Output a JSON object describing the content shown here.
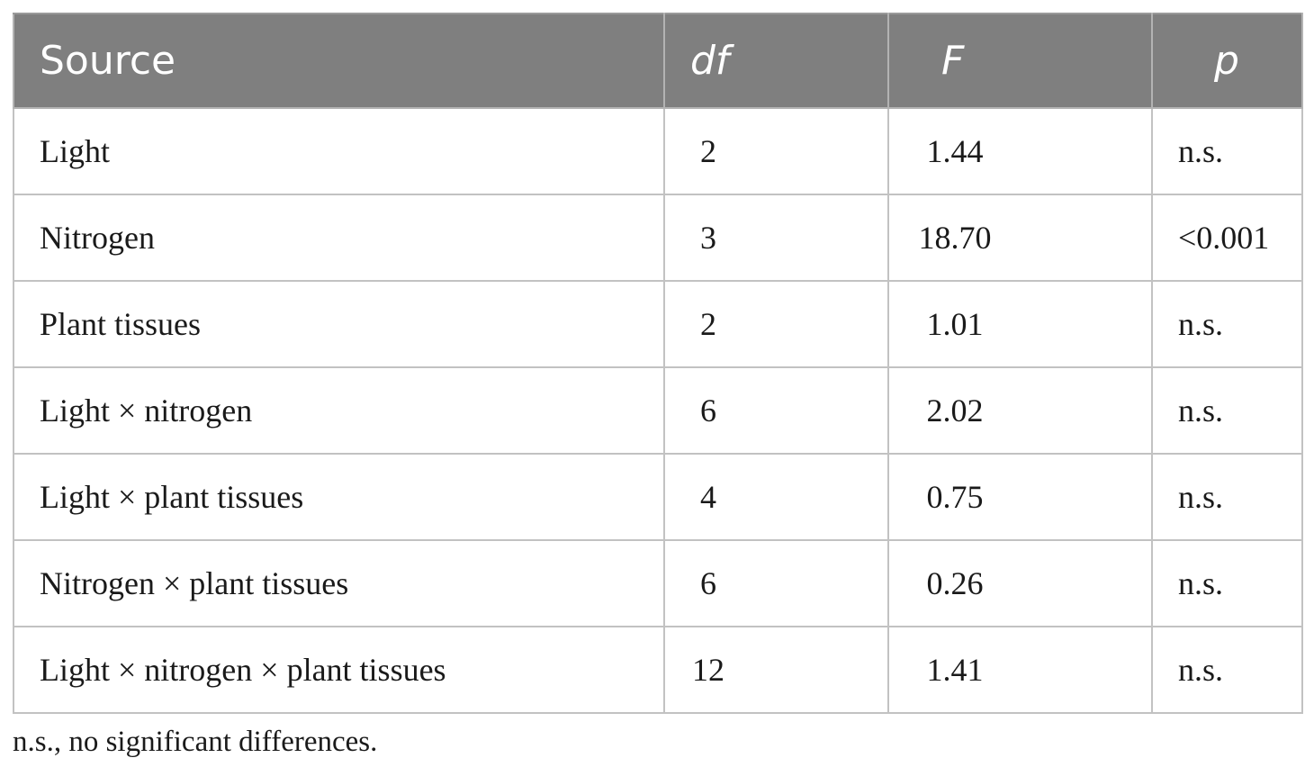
{
  "table": {
    "headers": {
      "source": "Source",
      "df": "df",
      "f": "F",
      "p": "p"
    },
    "rows": [
      {
        "source": "Light",
        "df": "2",
        "f": "1.44",
        "p": "n.s."
      },
      {
        "source": "Nitrogen",
        "df": "3",
        "f": "18.70",
        "p": "<0.001"
      },
      {
        "source": "Plant tissues",
        "df": "2",
        "f": "1.01",
        "p": "n.s."
      },
      {
        "source": "Light × nitrogen",
        "df": "6",
        "f": "2.02",
        "p": "n.s."
      },
      {
        "source": "Light × plant tissues",
        "df": "4",
        "f": "0.75",
        "p": "n.s."
      },
      {
        "source": "Nitrogen × plant tissues",
        "df": "6",
        "f": "0.26",
        "p": "n.s."
      },
      {
        "source": "Light × nitrogen × plant tissues",
        "df": "12",
        "f": "1.41",
        "p": "n.s."
      }
    ]
  },
  "footnote": "n.s., no significant differences.",
  "colors": {
    "header_background": "#7f7f7f",
    "header_text": "#ffffff",
    "grid_line": "#c2c2c2"
  }
}
